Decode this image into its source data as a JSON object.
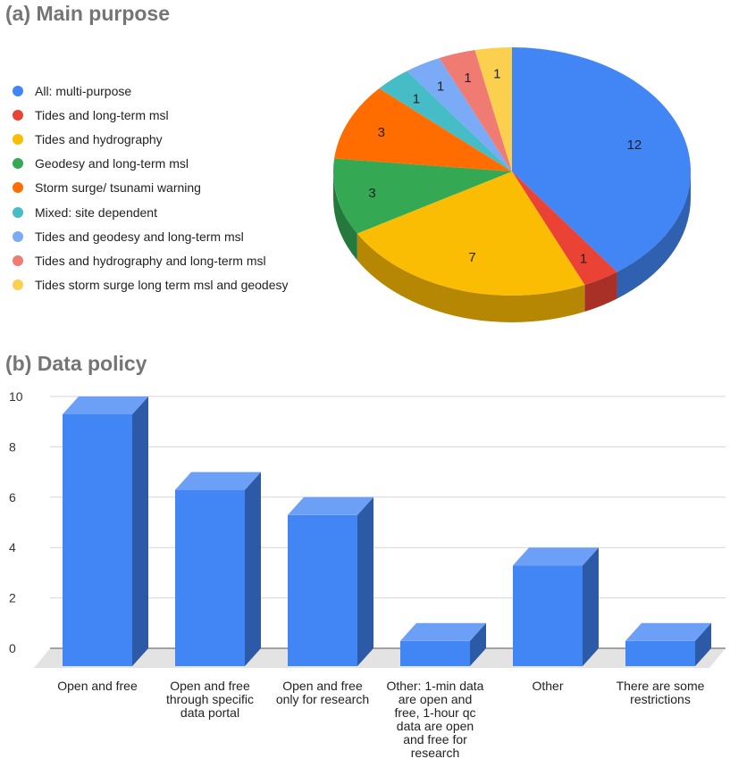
{
  "chart_data": [
    {
      "type": "pie",
      "title": "(a) Main purpose",
      "is_3d": true,
      "legend_position": "left",
      "slices": [
        {
          "label": "All: multi-purpose",
          "value": 12,
          "color": "#4285F4"
        },
        {
          "label": "Tides and long-term msl",
          "value": 1,
          "color": "#EA4335"
        },
        {
          "label": "Tides and hydrography",
          "value": 7,
          "color": "#FBBC04"
        },
        {
          "label": "Geodesy and long-term msl",
          "value": 3,
          "color": "#34A853"
        },
        {
          "label": "Storm surge/ tsunami warning",
          "value": 3,
          "color": "#FF6D01"
        },
        {
          "label": "Mixed: site dependent",
          "value": 1,
          "color": "#46BDC6"
        },
        {
          "label": "Tides and geodesy and long-term msl",
          "value": 1,
          "color": "#7BAAF7"
        },
        {
          "label": "Tides and hydrography and long-term msl",
          "value": 1,
          "color": "#F07B72"
        },
        {
          "label": "Tides storm surge long term msl and geodesy",
          "value": 1,
          "color": "#FCD04F"
        }
      ]
    },
    {
      "type": "bar",
      "title": "(b) Data policy",
      "is_3d": true,
      "categories": [
        [
          "Open and free"
        ],
        [
          "Open and free",
          "through  specific",
          "data portal"
        ],
        [
          "Open and free",
          "only for research"
        ],
        [
          "Other: 1-min data",
          "are open and",
          "free, 1-hour qc",
          "data are open",
          "and free for",
          "research"
        ],
        [
          "Other"
        ],
        [
          "There are some",
          "restrictions"
        ]
      ],
      "values": [
        10,
        7,
        6,
        1,
        4,
        1
      ],
      "ylim": [
        0,
        10
      ],
      "yticks": [
        0,
        2,
        4,
        6,
        8,
        10
      ],
      "grid": true,
      "color": "#4285F4"
    }
  ]
}
